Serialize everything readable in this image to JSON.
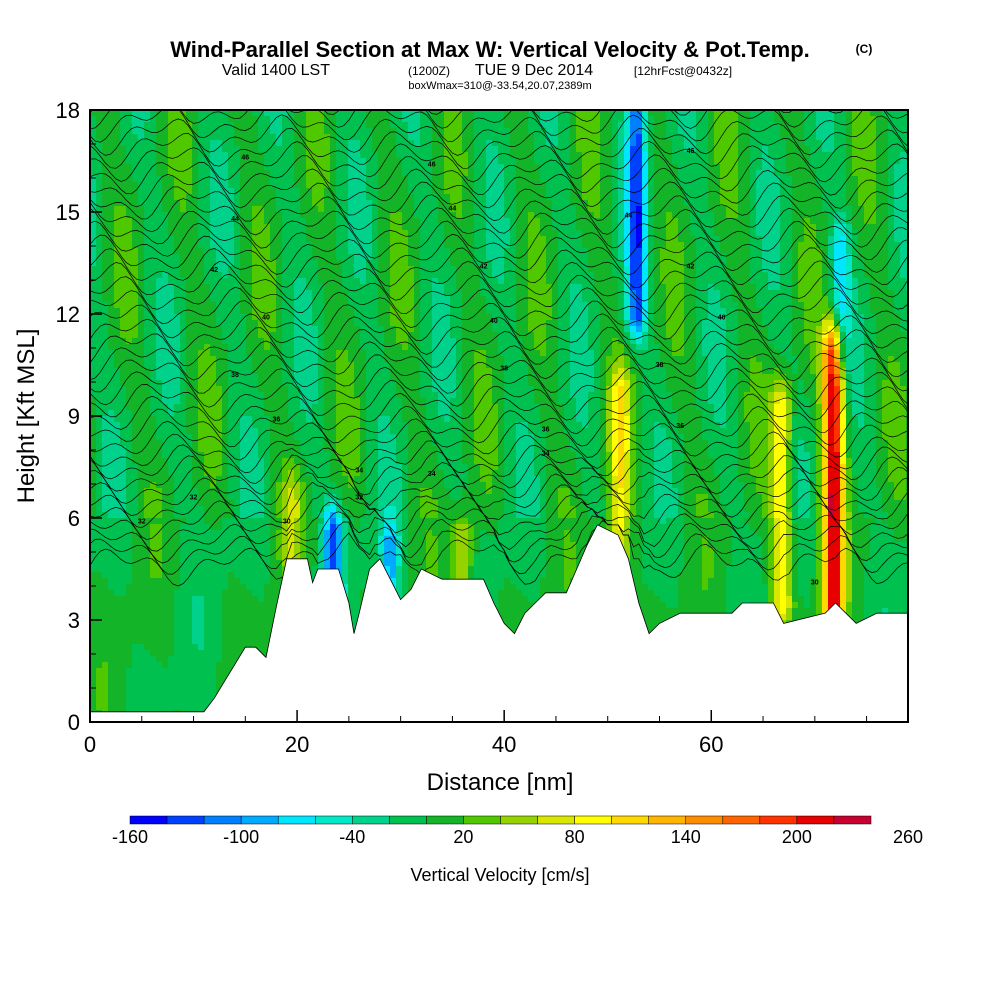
{
  "chart_data": {
    "type": "heatmap",
    "title": "Wind-Parallel Section at Max W: Vertical Velocity & Pot.Temp.",
    "title_suffix": "(C)",
    "subtitle_prefix": "Valid 1400 LST",
    "subtitle_z": "(1200Z)",
    "subtitle_date": "TUE 9 Dec 2014",
    "subtitle_fcst": "[12hrFcst@0432z]",
    "subtitle_box": "boxWmax=310@-33.54,20.07,2389m",
    "xlabel": "Distance [nm]",
    "ylabel": "Height [Kft MSL]",
    "xlim": [
      0,
      79
    ],
    "ylim": [
      0,
      18
    ],
    "x_ticks": [
      "0",
      "20",
      "40",
      "60"
    ],
    "y_ticks": [
      "0",
      "3",
      "6",
      "9",
      "12",
      "15",
      "18"
    ],
    "colorbar": {
      "label": "Vertical Velocity [cm/s]",
      "tick_labels": [
        "-160",
        "-100",
        "-40",
        "20",
        "80",
        "140",
        "200",
        "260"
      ],
      "colors": [
        "#0000ff",
        "#0040ff",
        "#0080ff",
        "#00aaff",
        "#00e6ff",
        "#00e8c8",
        "#00d28c",
        "#00c050",
        "#14b428",
        "#50c800",
        "#96d200",
        "#d8e600",
        "#ffff00",
        "#ffd800",
        "#ffb400",
        "#ff8c00",
        "#ff6400",
        "#ff3200",
        "#e60000",
        "#c80032"
      ]
    },
    "max_w_cms": 310,
    "terrain_kft": [
      [
        0,
        0.3
      ],
      [
        6,
        0.3
      ],
      [
        9,
        0.3
      ],
      [
        11,
        0.3
      ],
      [
        12,
        0.7
      ],
      [
        13,
        1.2
      ],
      [
        14,
        1.7
      ],
      [
        15,
        2.2
      ],
      [
        16,
        2.2
      ],
      [
        17,
        1.9
      ],
      [
        18,
        3.4
      ],
      [
        19,
        4.8
      ],
      [
        21,
        4.8
      ],
      [
        21.5,
        4.1
      ],
      [
        22,
        4.5
      ],
      [
        24,
        4.5
      ],
      [
        25,
        3.5
      ],
      [
        25.5,
        2.6
      ],
      [
        26,
        3.2
      ],
      [
        27,
        4.5
      ],
      [
        28,
        4.8
      ],
      [
        29,
        4.2
      ],
      [
        30,
        3.6
      ],
      [
        31,
        3.9
      ],
      [
        32,
        4.5
      ],
      [
        34,
        4.2
      ],
      [
        38,
        4.2
      ],
      [
        39,
        3.5
      ],
      [
        40,
        2.9
      ],
      [
        41,
        2.6
      ],
      [
        42,
        3.2
      ],
      [
        43,
        3.5
      ],
      [
        44,
        3.8
      ],
      [
        46,
        3.8
      ],
      [
        47,
        4.5
      ],
      [
        48,
        5.2
      ],
      [
        49,
        5.8
      ],
      [
        51,
        5.5
      ],
      [
        52,
        4.8
      ],
      [
        53,
        3.5
      ],
      [
        54,
        2.6
      ],
      [
        55,
        2.9
      ],
      [
        57,
        3.2
      ],
      [
        62,
        3.2
      ],
      [
        63,
        3.5
      ],
      [
        66,
        3.5
      ],
      [
        67,
        2.9
      ],
      [
        71,
        3.2
      ],
      [
        72,
        3.5
      ],
      [
        73,
        3.2
      ],
      [
        74,
        2.9
      ],
      [
        76,
        3.2
      ],
      [
        79,
        3.2
      ]
    ],
    "updrafts": [
      {
        "x": 51.2,
        "zbot": 4.8,
        "ztop": 9.5,
        "peak": 120
      },
      {
        "x": 66.8,
        "zbot": 3.5,
        "ztop": 9.2,
        "peak": 140
      },
      {
        "x": 71.8,
        "zbot": 3.4,
        "ztop": 10.8,
        "peak": 290
      },
      {
        "x": 36.0,
        "zbot": 4.2,
        "ztop": 5.2,
        "peak": 100
      },
      {
        "x": 19.5,
        "zbot": 5.0,
        "ztop": 6.5,
        "peak": 80
      }
    ],
    "downdrafts": [
      {
        "x": 52.8,
        "zbot": 12.0,
        "ztop": 18,
        "peak": -130
      },
      {
        "x": 23.5,
        "zbot": 3.8,
        "ztop": 5.6,
        "peak": -130
      },
      {
        "x": 29.0,
        "zbot": 3.8,
        "ztop": 5.2,
        "peak": -80
      },
      {
        "x": 72.5,
        "zbot": 11.0,
        "ztop": 14.0,
        "peak": -60
      }
    ],
    "isentrope_labels": [
      "46",
      "44",
      "42",
      "40",
      "38",
      "36",
      "34",
      "32",
      "30",
      "28"
    ]
  }
}
